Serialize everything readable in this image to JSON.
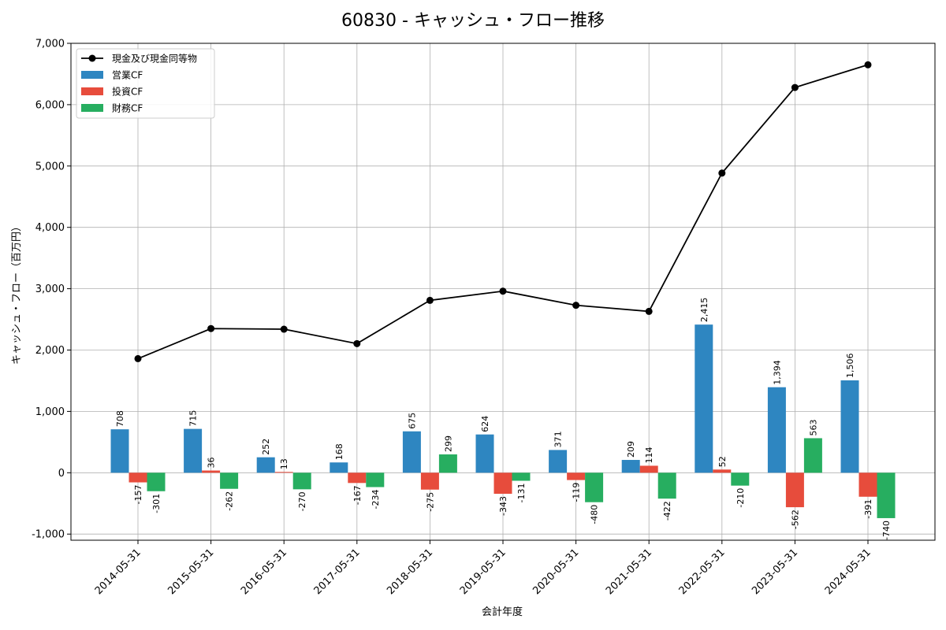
{
  "chart_data": {
    "type": "bar",
    "title": "60830 - キャッシュ・フロー推移",
    "xlabel": "会計年度",
    "ylabel": "キャッシュ・フロー（百万円）",
    "categories": [
      "2014-05-31",
      "2015-05-31",
      "2016-05-31",
      "2017-05-31",
      "2018-05-31",
      "2019-05-31",
      "2020-05-31",
      "2021-05-31",
      "2022-05-31",
      "2023-05-31",
      "2024-05-31"
    ],
    "ylim": [
      -1100,
      7000
    ],
    "yticks": [
      -1000,
      0,
      1000,
      2000,
      3000,
      4000,
      5000,
      6000,
      7000
    ],
    "ytick_labels": [
      "-1,000",
      "0",
      "1,000",
      "2,000",
      "3,000",
      "4,000",
      "5,000",
      "6,000",
      "7,000"
    ],
    "grid": true,
    "legend_position": "top-left",
    "series": [
      {
        "name": "営業CF",
        "kind": "bar",
        "color": "#2e86c1",
        "values": [
          708,
          715,
          252,
          168,
          675,
          624,
          371,
          209,
          2415,
          1394,
          1506
        ],
        "labels": [
          "708",
          "715",
          "252",
          "168",
          "675",
          "624",
          "371",
          "209",
          "2,415",
          "1,394",
          "1,506"
        ]
      },
      {
        "name": "投資CF",
        "kind": "bar",
        "color": "#e74c3c",
        "values": [
          -157,
          36,
          13,
          -167,
          -275,
          -343,
          -119,
          114,
          52,
          -562,
          -391
        ],
        "labels": [
          "-157",
          "36",
          "13",
          "-167",
          "-275",
          "-343",
          "-119",
          "114",
          "52",
          "-562",
          "-391"
        ]
      },
      {
        "name": "財務CF",
        "kind": "bar",
        "color": "#27ae60",
        "values": [
          -301,
          -262,
          -270,
          -234,
          299,
          -131,
          -480,
          -422,
          -210,
          563,
          -740
        ],
        "labels": [
          "-301",
          "-262",
          "-270",
          "-234",
          "299",
          "-131",
          "-480",
          "-422",
          "-210",
          "563",
          "-740"
        ]
      },
      {
        "name": "現金及び現金同等物",
        "kind": "line",
        "color": "#000000",
        "values": [
          1860,
          2350,
          2340,
          2105,
          2810,
          2960,
          2730,
          2630,
          4885,
          6280,
          6650
        ]
      }
    ]
  }
}
